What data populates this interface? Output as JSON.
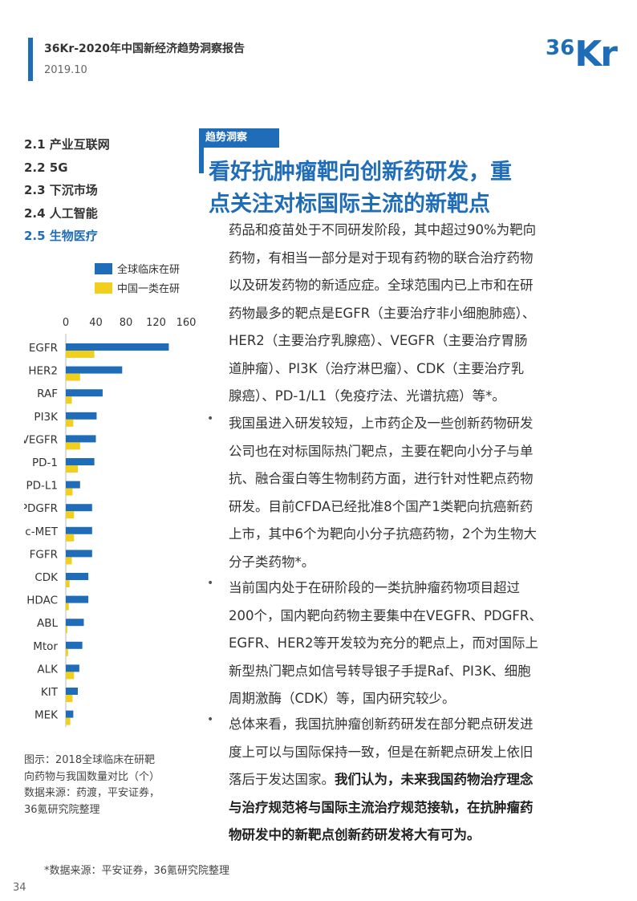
{
  "header": {
    "report_title": "36Kr-2020年中国新经济趋势洞察报告",
    "date": "2019.10",
    "logo_text": "36Kr"
  },
  "toc": {
    "items": [
      {
        "label": "2.1 产业互联网",
        "active": false
      },
      {
        "label": "2.2 5G",
        "active": false
      },
      {
        "label": "2.3 下沉市场",
        "active": false
      },
      {
        "label": "2.4 人工智能",
        "active": false
      },
      {
        "label": "2.5 生物医疗",
        "active": true
      }
    ]
  },
  "section": {
    "tag": "趋势洞察",
    "headline_line1": "看好抗肿瘤靶向创新药研发，重",
    "headline_line2": "点关注对标国际主流的新靶点"
  },
  "body": {
    "bullet_symbol": "•",
    "p1_lines": [
      "药品和疫苗处于不同研发阶段，其中超过90%为靶向",
      "药物，有相当一部分是对于现有药物的联合治疗药物",
      "以及研发药物的新适应症。全球范围内已上市和在研",
      "药物最多的靶点是EGFR（主要治疗非小细胞肺癌）、",
      "HER2（主要治疗乳腺癌）、VEGFR（主要治疗胃肠",
      "道肿瘤）、PI3K（治疗淋巴瘤）、CDK（主要治疗乳",
      "腺癌）、PD-1/L1（免疫疗法、光谱抗癌）等*。"
    ],
    "p2_lines": [
      "我国虽进入研发较短，上市药企及一些创新药物研发",
      "公司也在对标国际热门靶点，主要在靶向小分子与单",
      "抗、融合蛋白等生物制药方面，进行针对性靶点药物",
      "研发。目前CFDA已经批准8个国产1类靶向抗癌新药",
      "上市，其中6个为靶向小分子抗癌药物，2个为生物大",
      "分子类药物*。"
    ],
    "p3_lines": [
      "当前国内处于在研阶段的一类抗肿瘤药物项目超过",
      "200个，国内靶向药物主要集中在VEGFR、PDGFR、",
      "EGFR、HER2等开发较为充分的靶点上，而对国际上",
      "新型热门靶点如信号转导银子手提Raf、PI3K、细胞",
      "周期激酶（CDK）等，国内研究较少。"
    ],
    "p4_line1": "总体来看，我国抗肿瘤创新药研发在部分靶点研发进",
    "p4_line2": "度上可以与国际保持一致，但是在新靶点研发上依旧",
    "p4_line3_plain": "落后于发达国家。",
    "p4_line3_bold": "我们认为，未来我国药物治疗理念",
    "p4_line4_bold": "与治疗规范将与国际主流治疗规范接轨，在抗肿瘤药",
    "p4_line5_bold": "物研发中的新靶点创新药研发将大有可为。"
  },
  "caption": {
    "line1": "图示：2018全球临床在研靶",
    "line2": "向药物与我国数量对比（个）",
    "line3": "数据来源：药渡，平安证券，",
    "line4": "36氪研究院整理"
  },
  "footer": {
    "source_note": "*数据来源：平安证券，36氪研究院整理",
    "page_number": "34"
  },
  "colors": {
    "brand_blue": "#1f6db8",
    "series_global": "#1f6db8",
    "series_china": "#f0cf1f"
  },
  "chart_data": {
    "type": "bar",
    "orientation": "horizontal",
    "categories": [
      "EGFR",
      "HER2",
      "RAF",
      "PI3K",
      "VEGFR",
      "PD-1",
      "PD-L1",
      "PDGFR",
      "c-MET",
      "FGFR",
      "CDK",
      "HDAC",
      "ABL",
      "Mtor",
      "ALK",
      "KIT",
      "MEK"
    ],
    "series": [
      {
        "name": "全球临床在研",
        "values": [
          137,
          75,
          49,
          41,
          40,
          38,
          19,
          35,
          35,
          35,
          30,
          30,
          24,
          22,
          18,
          16,
          10
        ]
      },
      {
        "name": "中国一类在研",
        "values": [
          38,
          19,
          8,
          10,
          19,
          16,
          9,
          11,
          11,
          8,
          5,
          4,
          2,
          3,
          11,
          9,
          6
        ]
      }
    ],
    "xlim": [
      0,
      160
    ],
    "xticks": [
      0,
      40,
      80,
      120,
      160
    ],
    "legend_position": "top"
  }
}
